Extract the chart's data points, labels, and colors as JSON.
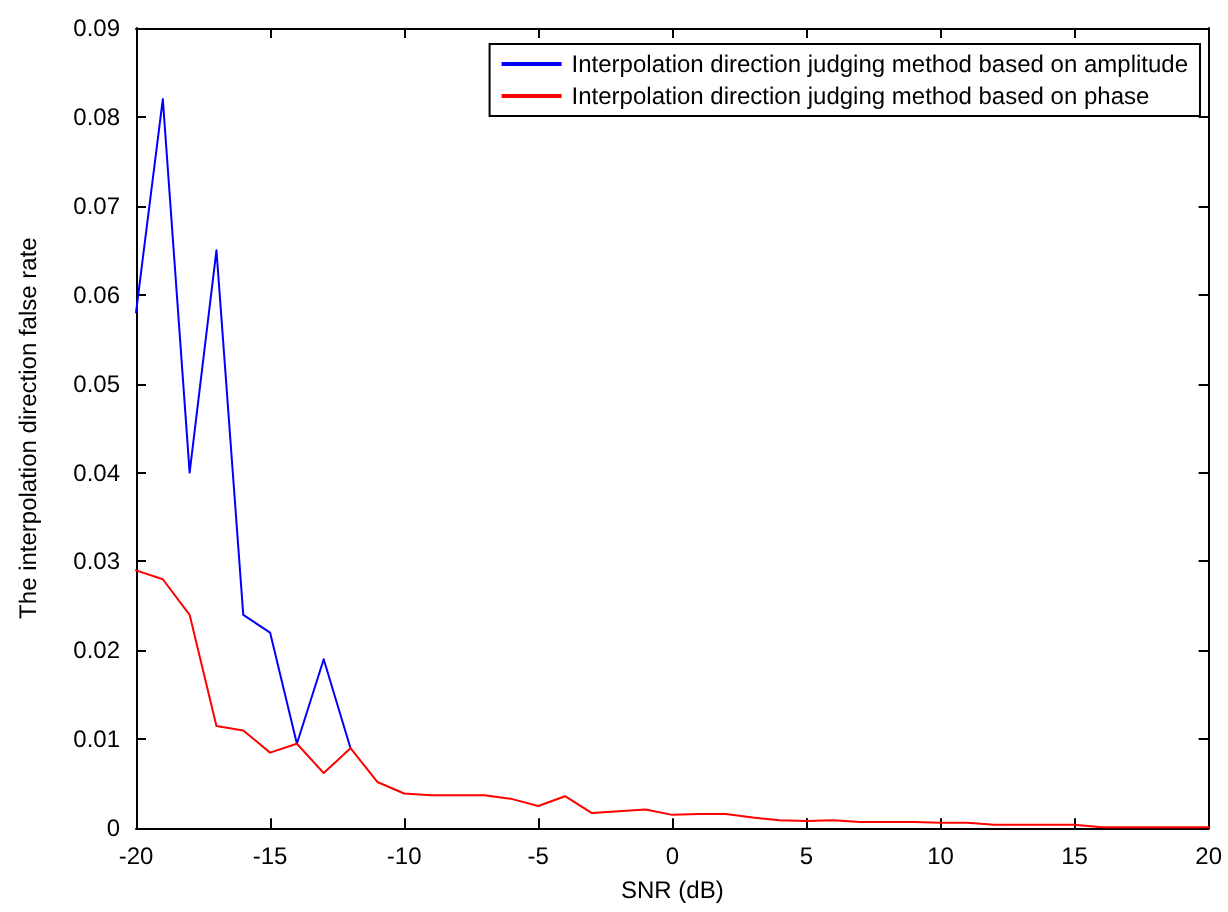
{
  "chart_data": {
    "type": "line",
    "xlabel": "SNR (dB)",
    "ylabel": "The interpolation direction false rate",
    "x": [
      -20,
      -19,
      -18,
      -17,
      -16,
      -15,
      -14,
      -13,
      -12,
      -11,
      -10,
      -9,
      -8,
      -7,
      -6,
      -5,
      -4,
      -3,
      -2,
      -1,
      0,
      1,
      2,
      3,
      4,
      5,
      6,
      7,
      8,
      9,
      10,
      11,
      12,
      13,
      14,
      15,
      16,
      17,
      18,
      19,
      20
    ],
    "series": [
      {
        "name": "Interpolation direction judging method based on amplitude",
        "color": "#0000ff",
        "values": [
          0.058,
          0.082,
          0.04,
          0.065,
          0.024,
          0.022,
          0.0095,
          0.019,
          0.009,
          null,
          null,
          null,
          null,
          null,
          null,
          null,
          null,
          null,
          null,
          null,
          null,
          null,
          null,
          null,
          null,
          null,
          null,
          null,
          null,
          null,
          null,
          null,
          null,
          null,
          null,
          null,
          null,
          null,
          null,
          null,
          null
        ]
      },
      {
        "name": "Interpolation direction judging method based on phase",
        "color": "#ff0000",
        "values": [
          0.029,
          0.028,
          0.024,
          0.0115,
          0.011,
          0.0085,
          0.0095,
          0.0062,
          0.009,
          0.0052,
          0.0039,
          0.0037,
          0.0037,
          0.0037,
          0.0033,
          0.0025,
          0.0036,
          0.0017,
          0.0019,
          0.0021,
          0.0015,
          0.0016,
          0.0016,
          0.0012,
          0.0009,
          0.0008,
          0.0009,
          0.0007,
          0.0007,
          0.0007,
          0.0006,
          0.0006,
          0.0004,
          0.0004,
          0.0004,
          0.0004,
          0.0001,
          0.0001,
          0.0001,
          0.0001,
          0.0001
        ]
      }
    ],
    "xlim": [
      -20,
      20
    ],
    "xticks": [
      -20,
      -15,
      -10,
      -5,
      0,
      5,
      10,
      15,
      20
    ],
    "ylim": [
      0,
      0.09
    ],
    "yticks": [
      0,
      0.01,
      0.02,
      0.03,
      0.04,
      0.05,
      0.06,
      0.07,
      0.08,
      0.09
    ],
    "grid": false,
    "legend": "top right",
    "marker": "none",
    "line_style": "solid"
  }
}
